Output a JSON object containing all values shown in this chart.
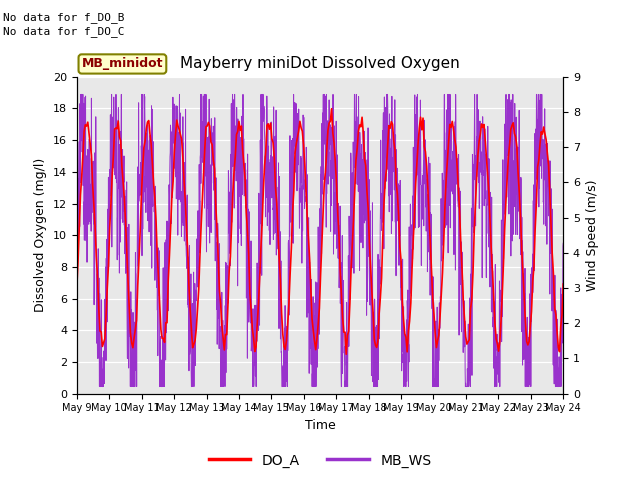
{
  "title": "Mayberry miniDot Dissolved Oxygen",
  "xlabel": "Time",
  "ylabel_left": "Dissolved Oxygen (mg/l)",
  "ylabel_right": "Wind Speed (m/s)",
  "annotations": [
    "No data for f_DO_B",
    "No data for f_DO_C"
  ],
  "legend_box_label": "MB_minidot",
  "ylim_left": [
    0,
    20
  ],
  "ylim_right": [
    0.0,
    9.0
  ],
  "yticks_left": [
    0,
    2,
    4,
    6,
    8,
    10,
    12,
    14,
    16,
    18,
    20
  ],
  "yticks_right": [
    0.0,
    1.0,
    2.0,
    3.0,
    4.0,
    5.0,
    6.0,
    7.0,
    8.0,
    9.0
  ],
  "xtick_labels": [
    "May 9",
    "May 10",
    "May 11",
    "May 12",
    "May 13",
    "May 14",
    "May 15",
    "May 16",
    "May 17",
    "May 18",
    "May 19",
    "May 20",
    "May 21",
    "May 22",
    "May 23",
    "May 24"
  ],
  "color_DO_A": "#ff0000",
  "color_MB_WS": "#9932cc",
  "legend_DO_A": "DO_A",
  "legend_MB_WS": "MB_WS",
  "bg_color": "#e8e8e8",
  "grid_color": "#ffffff",
  "n_points_do": 400,
  "n_points_ws": 2000,
  "seed": 42
}
